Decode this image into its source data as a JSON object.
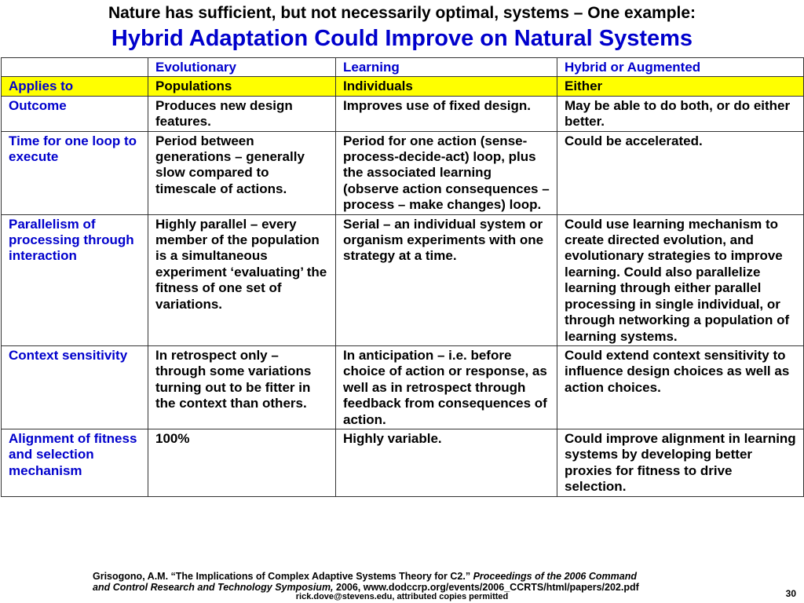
{
  "slide": {
    "title_line1": "Nature has sufficient, but not necessarily optimal, systems – One example:",
    "title_line2": "Hybrid Adaptation Could Improve on Natural Systems"
  },
  "table": {
    "header": [
      "",
      "Evolutionary",
      "Learning",
      "Hybrid or Augmented"
    ],
    "rows": [
      {
        "label": "Applies to",
        "evolutionary": "Populations",
        "learning": "Individuals",
        "hybrid": "Either"
      },
      {
        "label": "Outcome",
        "evolutionary": "Produces new design features.",
        "learning": "Improves use of fixed design.",
        "hybrid": "May be able to do both, or do either better."
      },
      {
        "label": "Time for one loop to execute",
        "evolutionary": "Period between generations – generally slow compared to timescale of actions.",
        "learning": "Period for one action (sense-process-decide-act) loop, plus the associated learning (observe action consequences – process – make changes) loop.",
        "hybrid": "Could be accelerated."
      },
      {
        "label": "Parallelism of processing through interaction",
        "evolutionary": "Highly parallel – every member of the population is a simultaneous experiment ‘evaluating’ the fitness of one set of variations.",
        "learning": "Serial – an individual system or organism experiments with one strategy at a time.",
        "hybrid": "Could use learning mechanism to create directed evolution, and evolutionary strategies to improve learning. Could also parallelize learning through either parallel processing in single individual, or through networking a population of learning systems."
      },
      {
        "label": "Context sensitivity",
        "evolutionary": "In retrospect only – through some variations turning out to be fitter in the context than others.",
        "learning": "In anticipation – i.e. before choice of action or response, as well as in retrospect through feedback from consequences of action.",
        "hybrid": "Could extend context sensitivity to influence design choices as well as action choices."
      },
      {
        "label": "Alignment of fitness and selection mechanism",
        "evolutionary": "100%",
        "learning": "Highly variable.",
        "hybrid": "Could improve alignment in learning systems by developing better proxies for fitness to drive selection."
      }
    ]
  },
  "footer": {
    "citation_part1": "Grisogono, A.M. “The Implications of Complex Adaptive Systems Theory for C2.” ",
    "citation_italic1": "Proceedings of the 2006 Command",
    "citation_italic2": "and Control Research and Technology Symposium,",
    "citation_part2": " 2006, www.dodccrp.org/events/2006_CCRTS/html/papers/202.pdf",
    "email_line": "rick.dove@stevens.edu, attributed copies permitted",
    "page_number": "30"
  }
}
